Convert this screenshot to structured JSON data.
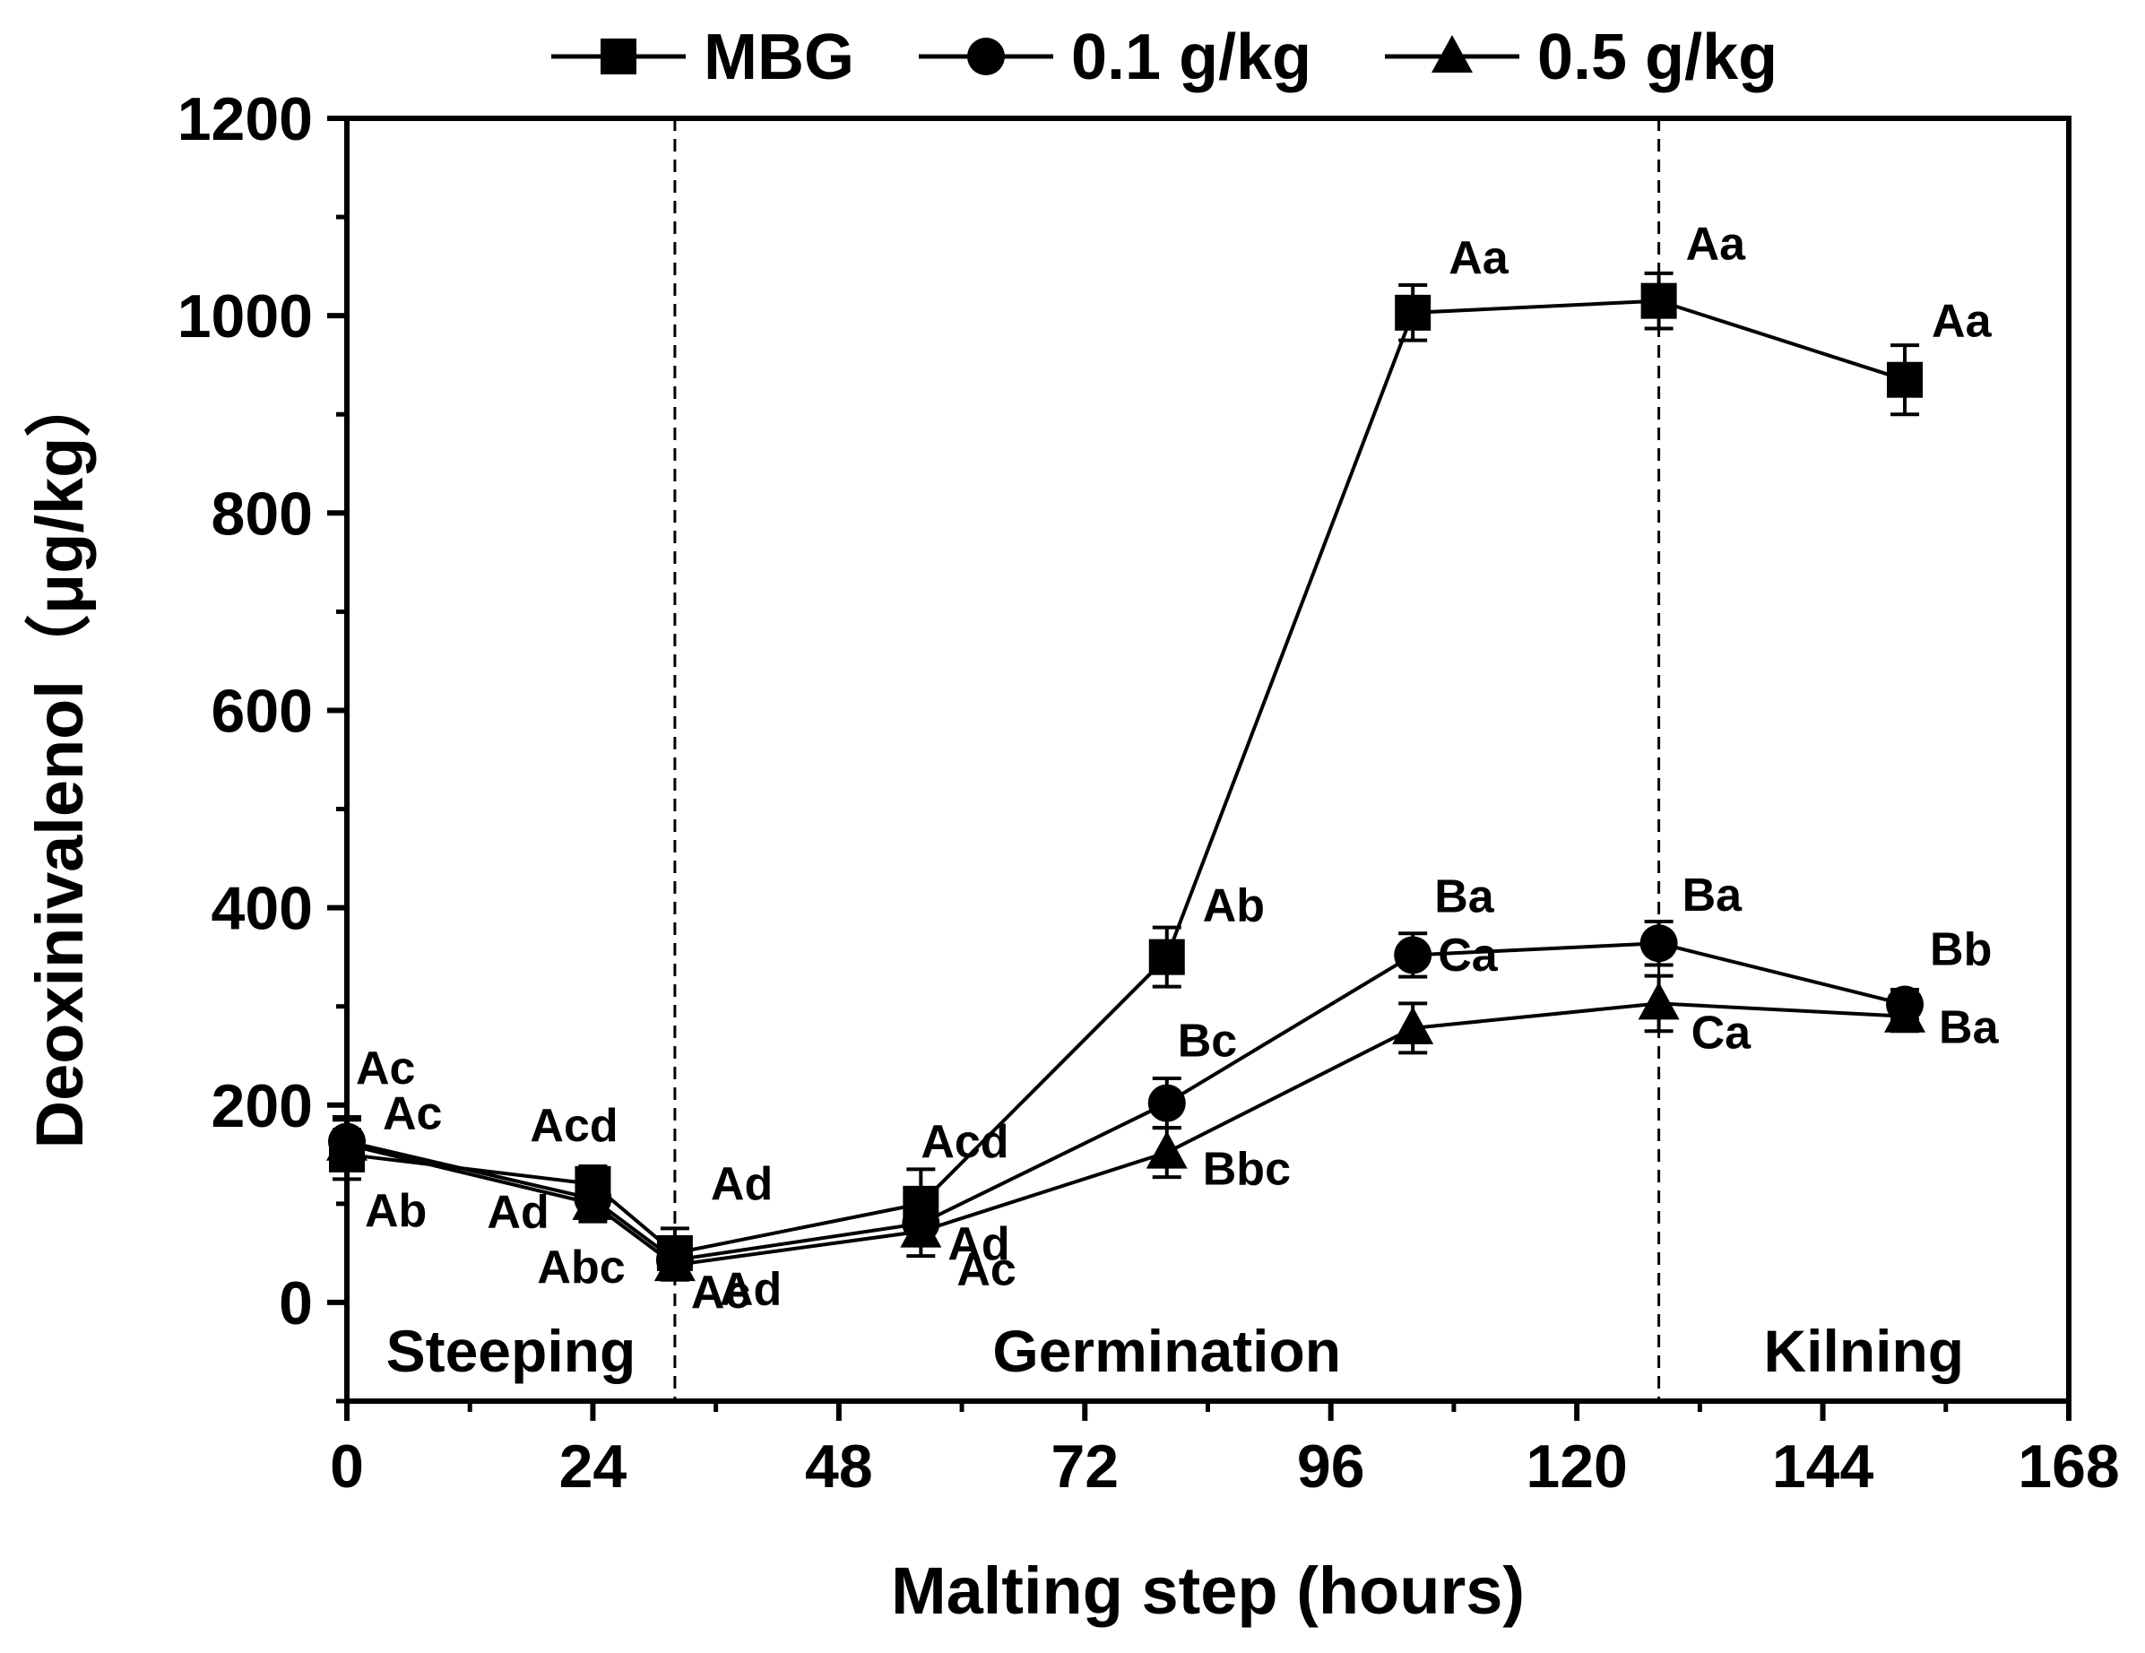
{
  "chart_data": {
    "type": "line",
    "title": "",
    "xlabel": "Malting step (hours)",
    "ylabel": "Deoxinivalenol（μg/kg）",
    "xlim": [
      0,
      168
    ],
    "ylim": [
      -100,
      1200
    ],
    "xticks": [
      0,
      24,
      48,
      72,
      96,
      120,
      144,
      168
    ],
    "yticks": [
      0,
      200,
      400,
      600,
      800,
      1000,
      1200
    ],
    "grid": false,
    "legend_position": "top",
    "series": [
      {
        "name": "MBG",
        "marker": "square",
        "x": [
          0,
          24,
          32,
          56,
          80,
          104,
          128,
          152
        ],
        "y": [
          150,
          120,
          50,
          100,
          350,
          1003,
          1015,
          935
        ],
        "err": [
          25,
          18,
          25,
          35,
          30,
          28,
          28,
          35
        ],
        "labels": [
          "Ab",
          "Acd",
          "Ad",
          "Acd",
          "Ab",
          "Aa",
          "Aa",
          "Aa"
        ]
      },
      {
        "name": "0.1 g/kg",
        "marker": "circle",
        "x": [
          0,
          24,
          32,
          56,
          80,
          104,
          128,
          152
        ],
        "y": [
          163,
          105,
          43,
          80,
          202,
          352,
          364,
          302
        ],
        "err": [
          25,
          18,
          20,
          20,
          25,
          22,
          22,
          15
        ],
        "labels": [
          "Ac",
          "Ad",
          "Ad",
          "Ad",
          "Bc",
          "Ba",
          "Ba",
          "Bb"
        ]
      },
      {
        "name": "0.5 g/kg",
        "marker": "triangle",
        "x": [
          0,
          24,
          32,
          56,
          80,
          104,
          128,
          152
        ],
        "y": [
          160,
          100,
          38,
          72,
          152,
          278,
          303,
          290
        ],
        "err": [
          25,
          18,
          15,
          25,
          25,
          25,
          28,
          15
        ],
        "labels": [
          "Ac",
          "Abc",
          "Ac",
          "Ac",
          "Bbc",
          "Ca",
          "Ca",
          "Ba"
        ]
      }
    ],
    "vlines": [
      32,
      128
    ],
    "phase_labels": [
      {
        "text": "Steeping",
        "x": 16
      },
      {
        "text": "Germination",
        "x": 80
      },
      {
        "text": "Kilning",
        "x": 148
      }
    ]
  }
}
